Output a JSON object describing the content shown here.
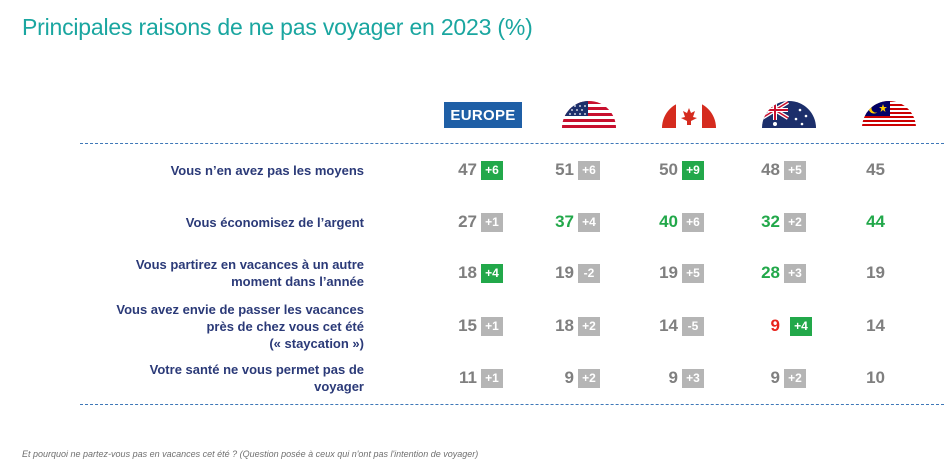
{
  "title": "Principales raisons de ne pas voyager en 2023 (%)",
  "footnote": "Et pourquoi ne partez-vous pas en vacances cet été ? (Question posée à ceux qui n'ont pas l'intention de voyager)",
  "colors": {
    "title": "#1aa6a0",
    "label": "#2b3a78",
    "value_default": "#7f7f7f",
    "value_high": "#22a84a",
    "value_low": "#e8231c",
    "change_up": "#22a84a",
    "change_neutral": "#b5b5b5",
    "europe_badge": "#1f5fa6",
    "divider": "#3f78b8"
  },
  "chart_data": {
    "type": "table",
    "title": "Principales raisons de ne pas voyager en 2023 (%)",
    "columns": [
      {
        "key": "europe",
        "label": "EUROPE",
        "icon": "europe-badge"
      },
      {
        "key": "usa",
        "label": "",
        "icon": "usa-flag-icon"
      },
      {
        "key": "canada",
        "label": "",
        "icon": "canada-flag-icon"
      },
      {
        "key": "australia",
        "label": "",
        "icon": "australia-flag-icon"
      },
      {
        "key": "malaysia",
        "label": "",
        "icon": "malaysia-flag-icon"
      }
    ],
    "rows": [
      {
        "label_lines": [
          "Vous n’en avez pas les moyens"
        ],
        "cells": [
          {
            "value": 47,
            "change": "+6",
            "value_color": "default",
            "change_color": "green"
          },
          {
            "value": 51,
            "change": "+6",
            "value_color": "default",
            "change_color": "gray"
          },
          {
            "value": 50,
            "change": "+9",
            "value_color": "default",
            "change_color": "green"
          },
          {
            "value": 48,
            "change": "+5",
            "value_color": "default",
            "change_color": "gray"
          },
          {
            "value": 45,
            "change": null,
            "value_color": "default",
            "change_color": null
          }
        ]
      },
      {
        "label_lines": [
          "Vous économisez de l’argent"
        ],
        "cells": [
          {
            "value": 27,
            "change": "+1",
            "value_color": "default",
            "change_color": "gray"
          },
          {
            "value": 37,
            "change": "+4",
            "value_color": "green",
            "change_color": "gray"
          },
          {
            "value": 40,
            "change": "+6",
            "value_color": "green",
            "change_color": "gray"
          },
          {
            "value": 32,
            "change": "+2",
            "value_color": "green",
            "change_color": "gray"
          },
          {
            "value": 44,
            "change": null,
            "value_color": "green",
            "change_color": null
          }
        ]
      },
      {
        "label_lines": [
          "Vous partirez en vacances à un autre",
          "moment dans l’année"
        ],
        "cells": [
          {
            "value": 18,
            "change": "+4",
            "value_color": "default",
            "change_color": "green"
          },
          {
            "value": 19,
            "change": "-2",
            "value_color": "default",
            "change_color": "gray"
          },
          {
            "value": 19,
            "change": "+5",
            "value_color": "default",
            "change_color": "gray"
          },
          {
            "value": 28,
            "change": "+3",
            "value_color": "green",
            "change_color": "gray"
          },
          {
            "value": 19,
            "change": null,
            "value_color": "default",
            "change_color": null
          }
        ]
      },
      {
        "label_lines": [
          "Vous avez envie de passer les vacances",
          "près de chez vous cet été",
          "(« staycation »)"
        ],
        "cells": [
          {
            "value": 15,
            "change": "+1",
            "value_color": "default",
            "change_color": "gray"
          },
          {
            "value": 18,
            "change": "+2",
            "value_color": "default",
            "change_color": "gray"
          },
          {
            "value": 14,
            "change": "-5",
            "value_color": "default",
            "change_color": "gray"
          },
          {
            "value": 9,
            "change": "+4",
            "value_color": "red",
            "change_color": "green"
          },
          {
            "value": 14,
            "change": null,
            "value_color": "default",
            "change_color": null
          }
        ]
      },
      {
        "label_lines": [
          "Votre santé ne vous permet pas de",
          "voyager"
        ],
        "cells": [
          {
            "value": 11,
            "change": "+1",
            "value_color": "default",
            "change_color": "gray"
          },
          {
            "value": 9,
            "change": "+2",
            "value_color": "default",
            "change_color": "gray"
          },
          {
            "value": 9,
            "change": "+3",
            "value_color": "default",
            "change_color": "gray"
          },
          {
            "value": 9,
            "change": "+2",
            "value_color": "default",
            "change_color": "gray"
          },
          {
            "value": 10,
            "change": null,
            "value_color": "default",
            "change_color": null
          }
        ]
      }
    ]
  }
}
